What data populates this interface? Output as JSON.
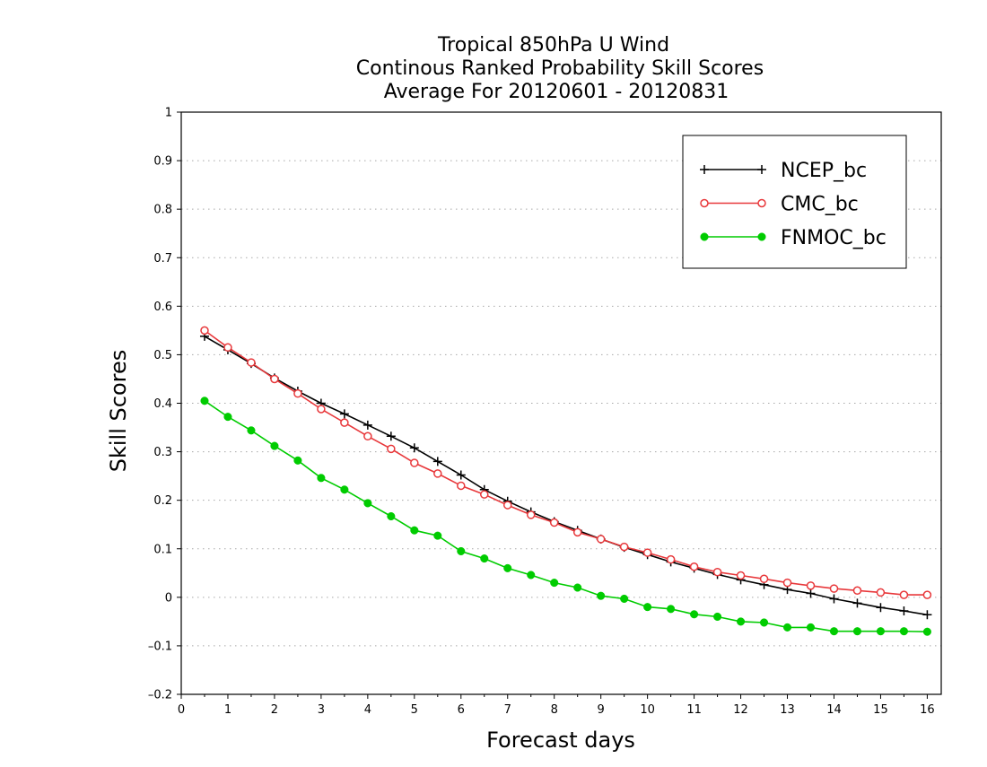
{
  "chart_data": {
    "type": "line",
    "title_lines": [
      "Tropical 850hPa U Wind",
      "Continous Ranked Probability Skill Scores",
      "Average For 20120601 - 20120831"
    ],
    "xlabel": "Forecast days",
    "ylabel": "Skill Scores",
    "xlim": [
      0,
      16.3
    ],
    "ylim": [
      -0.2,
      1
    ],
    "x_ticks": [
      0,
      1,
      2,
      3,
      4,
      5,
      6,
      7,
      8,
      9,
      10,
      11,
      12,
      13,
      14,
      15,
      16
    ],
    "y_ticks": [
      -0.2,
      -0.1,
      0,
      0.1,
      0.2,
      0.3,
      0.4,
      0.5,
      0.6,
      0.7,
      0.8,
      0.9,
      1
    ],
    "y_tick_labels": [
      "–0.2",
      "–0.1",
      "0",
      "0.1",
      "0.2",
      "0.3",
      "0.4",
      "0.5",
      "0.6",
      "0.7",
      "0.8",
      "0.9",
      "1"
    ],
    "grid": "horizontal dotted",
    "legend_position": "top-right",
    "x": [
      0.5,
      1,
      1.5,
      2,
      2.5,
      3,
      3.5,
      4,
      4.5,
      5,
      5.5,
      6,
      6.5,
      7,
      7.5,
      8,
      8.5,
      9,
      9.5,
      10,
      10.5,
      11,
      11.5,
      12,
      12.5,
      13,
      13.5,
      14,
      14.5,
      15,
      15.5,
      16
    ],
    "series": [
      {
        "name": "NCEP_bc",
        "color": "#000000",
        "marker": "plus",
        "values": [
          0.538,
          0.51,
          0.482,
          0.452,
          0.425,
          0.4,
          0.378,
          0.355,
          0.332,
          0.308,
          0.28,
          0.252,
          0.222,
          0.198,
          0.176,
          0.156,
          0.138,
          0.12,
          0.103,
          0.088,
          0.073,
          0.06,
          0.047,
          0.036,
          0.026,
          0.016,
          0.008,
          -0.003,
          -0.012,
          -0.021,
          -0.028,
          -0.036
        ]
      },
      {
        "name": "CMC_bc",
        "color": "#e8383b",
        "marker": "open-circle",
        "values": [
          0.55,
          0.515,
          0.484,
          0.45,
          0.42,
          0.388,
          0.36,
          0.332,
          0.306,
          0.277,
          0.255,
          0.23,
          0.212,
          0.19,
          0.17,
          0.154,
          0.134,
          0.12,
          0.104,
          0.092,
          0.078,
          0.063,
          0.052,
          0.045,
          0.038,
          0.03,
          0.024,
          0.018,
          0.014,
          0.01,
          0.005,
          0.005
        ]
      },
      {
        "name": "FNMOC_bc",
        "color": "#00cc00",
        "marker": "filled-circle",
        "values": [
          0.405,
          0.372,
          0.344,
          0.312,
          0.282,
          0.246,
          0.222,
          0.194,
          0.167,
          0.138,
          0.127,
          0.095,
          0.08,
          0.06,
          0.046,
          0.03,
          0.02,
          0.003,
          -0.003,
          -0.02,
          -0.024,
          -0.035,
          -0.04,
          -0.05,
          -0.052,
          -0.062,
          -0.062,
          -0.07,
          -0.07,
          -0.07,
          -0.07,
          -0.071
        ]
      }
    ]
  }
}
